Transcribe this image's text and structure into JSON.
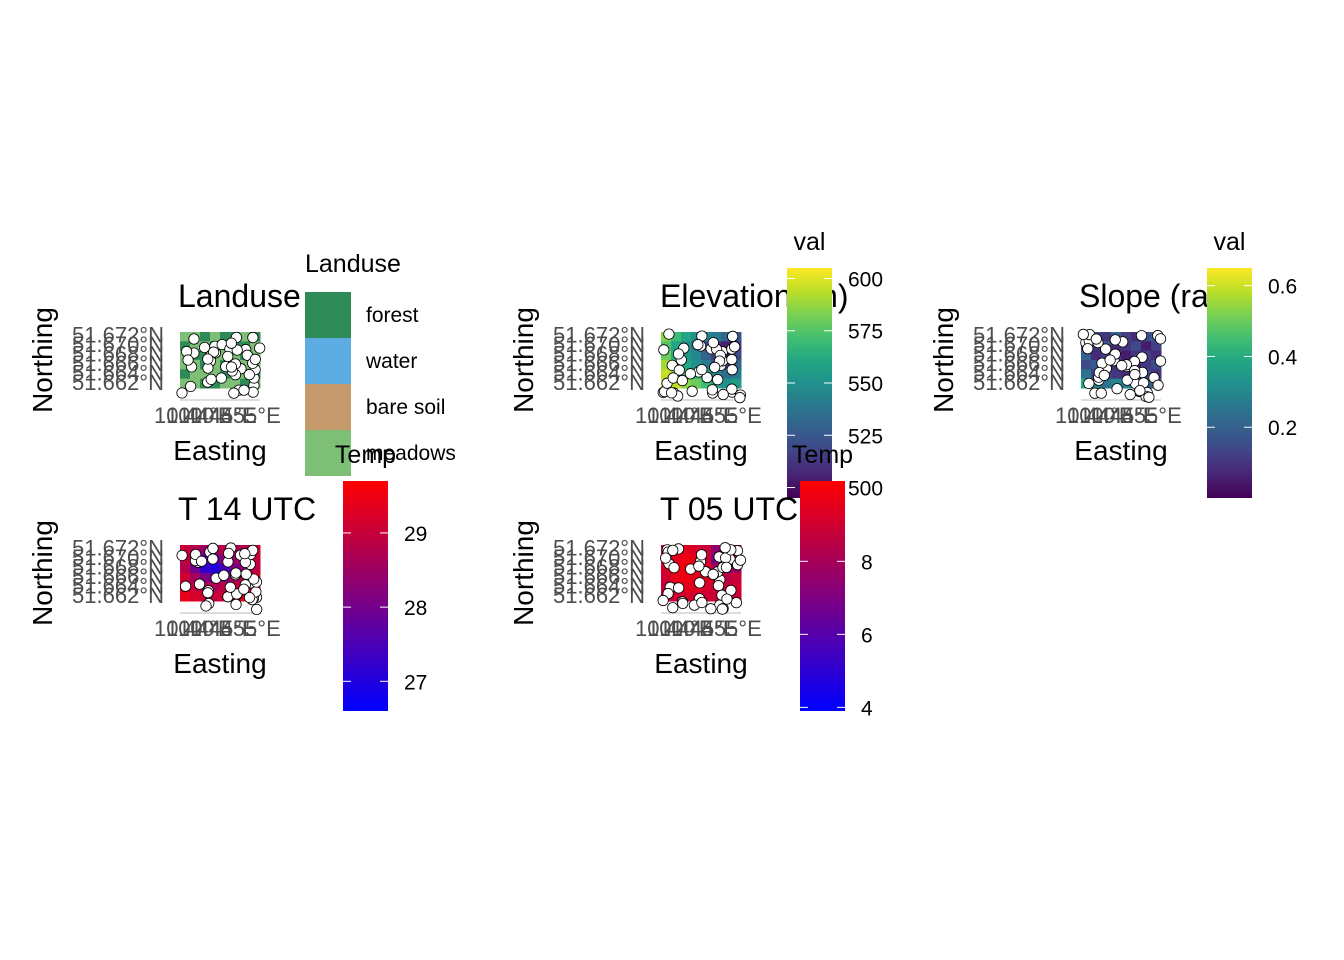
{
  "chart_data": [
    {
      "type": "heatmap",
      "title": "Landuse",
      "xlabel": "Easting",
      "ylabel": "Northing",
      "xticks": [
        "10.44°E",
        "10.445°E",
        "10.45°E",
        "10.455°E"
      ],
      "yticks": [
        "51.662°N",
        "51.664°N",
        "51.666°N",
        "51.668°N",
        "51.670°N",
        "51.672°N"
      ],
      "xlim": [
        10.438,
        10.456
      ],
      "ylim": [
        51.661,
        51.673
      ],
      "legend": {
        "title": "Landuse",
        "type": "categorical",
        "entries": [
          {
            "label": "forest",
            "color": "#2e8b57"
          },
          {
            "label": "water",
            "color": "#5dade2"
          },
          {
            "label": "bare soil",
            "color": "#c49a6c"
          },
          {
            "label": "meadows",
            "color": "#7dbf74"
          }
        ]
      },
      "grid": [
        [
          3,
          3,
          0,
          3,
          0,
          0,
          3,
          0
        ],
        [
          0,
          3,
          3,
          0,
          3,
          0,
          0,
          3
        ],
        [
          3,
          0,
          0,
          3,
          3,
          3,
          0,
          3
        ],
        [
          3,
          3,
          0,
          3,
          0,
          0,
          3,
          3
        ],
        [
          0,
          3,
          3,
          3,
          0,
          3,
          3,
          0
        ],
        [
          3,
          3,
          0,
          0,
          3,
          3,
          0,
          3
        ]
      ]
    },
    {
      "type": "heatmap",
      "title": "Elevation (m)",
      "xlabel": "Easting",
      "ylabel": "Northing",
      "xticks": [
        "10.44°E",
        "10.445°E",
        "10.45°E",
        "10.455°E"
      ],
      "yticks": [
        "51.662°N",
        "51.664°N",
        "51.666°N",
        "51.668°N",
        "51.670°N",
        "51.672°N"
      ],
      "xlim": [
        10.438,
        10.456
      ],
      "ylim": [
        51.661,
        51.673
      ],
      "legend": {
        "title": "val",
        "type": "continuous",
        "palette": "viridis",
        "range": [
          495,
          605
        ],
        "ticks": [
          500,
          525,
          550,
          575,
          600
        ]
      },
      "grid": [
        [
          585,
          570,
          560,
          550,
          545,
          540,
          530,
          525
        ],
        [
          575,
          560,
          550,
          540,
          520,
          510,
          505,
          515
        ],
        [
          580,
          565,
          555,
          545,
          530,
          515,
          500,
          520
        ],
        [
          590,
          575,
          560,
          550,
          540,
          525,
          515,
          530
        ],
        [
          595,
          585,
          575,
          565,
          555,
          545,
          535,
          540
        ],
        [
          600,
          595,
          585,
          580,
          570,
          560,
          550,
          555
        ]
      ]
    },
    {
      "type": "heatmap",
      "title": "Slope (rad)",
      "xlabel": "Easting",
      "ylabel": "Northing",
      "xticks": [
        "10.44°E",
        "10.445°E",
        "10.45°E",
        "10.455°E"
      ],
      "yticks": [
        "51.662°N",
        "51.664°N",
        "51.666°N",
        "51.668°N",
        "51.670°N",
        "51.672°N"
      ],
      "xlim": [
        10.438,
        10.456
      ],
      "ylim": [
        51.661,
        51.673
      ],
      "legend": {
        "title": "val",
        "type": "continuous",
        "palette": "viridis",
        "range": [
          0.0,
          0.65
        ],
        "ticks": [
          0.2,
          0.4,
          0.6
        ]
      },
      "grid": [
        [
          0.35,
          0.15,
          0.1,
          0.2,
          0.12,
          0.08,
          0.15,
          0.2
        ],
        [
          0.12,
          0.1,
          0.18,
          0.08,
          0.1,
          0.15,
          0.05,
          0.12
        ],
        [
          0.2,
          0.08,
          0.12,
          0.15,
          0.05,
          0.1,
          0.12,
          0.08
        ],
        [
          0.15,
          0.18,
          0.1,
          0.08,
          0.12,
          0.06,
          0.1,
          0.15
        ],
        [
          0.25,
          0.12,
          0.15,
          0.1,
          0.08,
          0.12,
          0.15,
          0.1
        ],
        [
          0.4,
          0.3,
          0.25,
          0.3,
          0.28,
          0.25,
          0.2,
          0.22
        ]
      ]
    },
    {
      "type": "heatmap",
      "title": "T 14 UTC",
      "xlabel": "Easting",
      "ylabel": "Northing",
      "xticks": [
        "10.44°E",
        "10.445°E",
        "10.45°E",
        "10.455°E"
      ],
      "yticks": [
        "51.662°N",
        "51.664°N",
        "51.666°N",
        "51.668°N",
        "51.670°N",
        "51.672°N"
      ],
      "xlim": [
        10.438,
        10.456
      ],
      "ylim": [
        51.661,
        51.673
      ],
      "legend": {
        "title": "Temp",
        "type": "continuous",
        "low_color": "#0000ff",
        "mid_color": "#800080",
        "high_color": "#ff0000",
        "range": [
          26.6,
          29.7
        ],
        "ticks": [
          27,
          28,
          29
        ]
      },
      "grid": [
        [
          29.0,
          28.8,
          28.5,
          28.6,
          28.9,
          28.7,
          28.8,
          29.1
        ],
        [
          28.9,
          28.4,
          27.6,
          27.8,
          28.3,
          28.5,
          28.7,
          29.0
        ],
        [
          28.8,
          28.0,
          27.2,
          27.0,
          27.5,
          28.1,
          28.4,
          28.9
        ],
        [
          29.1,
          28.6,
          28.1,
          27.9,
          28.2,
          28.6,
          28.8,
          29.2
        ],
        [
          29.3,
          29.0,
          28.8,
          28.7,
          28.9,
          29.0,
          29.1,
          29.3
        ],
        [
          29.4,
          29.2,
          29.1,
          29.0,
          29.1,
          29.2,
          29.3,
          29.4
        ]
      ]
    },
    {
      "type": "heatmap",
      "title": "T 05 UTC",
      "xlabel": "Easting",
      "ylabel": "Northing",
      "xticks": [
        "10.44°E",
        "10.445°E",
        "10.45°E",
        "10.455°E"
      ],
      "yticks": [
        "51.662°N",
        "51.664°N",
        "51.666°N",
        "51.668°N",
        "51.670°N",
        "51.672°N"
      ],
      "xlim": [
        10.438,
        10.456
      ],
      "ylim": [
        51.661,
        51.673
      ],
      "legend": {
        "title": "Temp",
        "type": "continuous",
        "low_color": "#0000ff",
        "mid_color": "#800080",
        "high_color": "#ff0000",
        "range": [
          3.9,
          10.2
        ],
        "ticks": [
          4,
          6,
          8
        ]
      },
      "grid": [
        [
          8.5,
          9.0,
          9.5,
          9.2,
          8.8,
          7.5,
          8.0,
          8.6
        ],
        [
          9.0,
          9.5,
          9.8,
          9.6,
          9.0,
          7.0,
          6.5,
          8.2
        ],
        [
          9.2,
          9.8,
          9.9,
          9.7,
          9.3,
          8.0,
          6.8,
          7.8
        ],
        [
          9.0,
          9.6,
          9.8,
          9.5,
          9.4,
          9.0,
          8.5,
          8.8
        ],
        [
          8.8,
          9.2,
          9.5,
          9.4,
          9.2,
          9.0,
          8.8,
          9.0
        ],
        [
          8.6,
          9.0,
          9.2,
          9.1,
          9.0,
          8.9,
          8.7,
          8.9
        ]
      ]
    }
  ]
}
